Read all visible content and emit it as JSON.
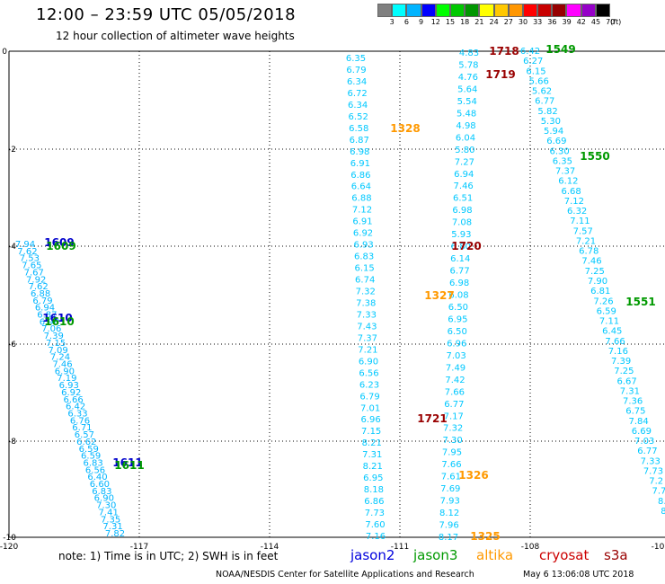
{
  "header": {
    "title": "12:00 – 23:59 UTC 05/05/2018",
    "subtitle": "12 hour collection of altimeter wave heights"
  },
  "legend": {
    "colors": [
      "#808080",
      "#00ffff",
      "#00b4ff",
      "#0000ff",
      "#00ff00",
      "#00c800",
      "#009600",
      "#ffff00",
      "#ffc800",
      "#ff9600",
      "#ff0000",
      "#c80000",
      "#960000",
      "#ff00ff",
      "#9600c8",
      "#000000"
    ],
    "labels": [
      "3",
      "6",
      "9",
      "12",
      "15",
      "18",
      "21",
      "24",
      "27",
      "30",
      "33",
      "36",
      "39",
      "42",
      "45",
      "70",
      "(ft)"
    ]
  },
  "axes": {
    "x_ticks": [
      "-120",
      "-117",
      "-114",
      "-111",
      "-108",
      "-10"
    ],
    "y_ticks": [
      "0",
      "-2",
      "-4",
      "-6",
      "-8",
      "-10"
    ]
  },
  "tracks": {
    "t1": {
      "label": "1609",
      "color": "#000000",
      "values": [
        "7.94",
        "7.62",
        "7.53",
        "7.65",
        "7.67",
        "7.92",
        "7.62",
        "6.88",
        "6.79",
        "6.94",
        "6.87",
        "6.98",
        "7.06",
        "7.39",
        "7.15",
        "7.09",
        "7.24",
        "7.46",
        "6.90",
        "7.19",
        "6.93",
        "6.92",
        "6.66",
        "6.42",
        "6.33",
        "6.76",
        "6.71",
        "6.57",
        "6.62",
        "6.59",
        "6.59",
        "6.83",
        "6.56",
        "6.40",
        "6.60",
        "6.83",
        "6.90",
        "7.30",
        "7.41",
        "7.35",
        "7.31",
        "7.82"
      ]
    },
    "t2": {
      "label": "1328",
      "color": "#00c8ff",
      "values": [
        "6.35",
        "6.79",
        "6.34",
        "6.72",
        "6.34",
        "6.52",
        "6.58",
        "6.87",
        "6.98",
        "6.91",
        "6.86",
        "6.64",
        "6.88",
        "7.12",
        "6.91",
        "6.92",
        "6.93",
        "6.83",
        "6.15",
        "6.74",
        "7.32",
        "7.38",
        "7.33",
        "7.43",
        "7.37",
        "7.21",
        "6.90",
        "6.56",
        "6.23",
        "6.79",
        "7.01",
        "6.96",
        "7.15",
        "8.21",
        "7.31",
        "8.21",
        "6.95",
        "8.18",
        "6.86",
        "7.73",
        "7.60",
        "7.16"
      ]
    },
    "t3": {
      "label": "1720",
      "color": "#00c8ff",
      "values": [
        "4.83",
        "5.78",
        "4.76",
        "5.64",
        "5.54",
        "5.48",
        "4.98",
        "6.04",
        "5.80",
        "7.27",
        "6.94",
        "7.46",
        "6.51",
        "6.98",
        "7.08",
        "5.93",
        "6.80",
        "6.14",
        "6.77",
        "6.98",
        "6.08",
        "6.50",
        "6.95",
        "6.50",
        "6.96",
        "7.03",
        "7.49",
        "7.42",
        "7.66",
        "6.77",
        "7.17",
        "7.32",
        "7.30",
        "7.95",
        "7.66",
        "7.61",
        "7.69",
        "7.93",
        "8.12",
        "7.96",
        "8.17"
      ]
    },
    "t4": {
      "label": "1550",
      "color": "#00c8ff",
      "values": [
        "6.42",
        "6.27",
        "6.15",
        "5.66",
        "5.62",
        "6.77",
        "5.82",
        "5.30",
        "5.94",
        "6.69",
        "6.30",
        "6.35",
        "7.37",
        "6.12",
        "6.68",
        "7.12",
        "6.32",
        "7.11",
        "7.57",
        "7.21",
        "6.78",
        "7.46",
        "7.25",
        "7.90",
        "6.81",
        "7.26",
        "6.59",
        "7.11",
        "6.45",
        "7.66",
        "7.16",
        "7.39",
        "7.25",
        "6.67",
        "7.31",
        "7.36",
        "6.75",
        "7.84",
        "6.69",
        "7.03",
        "6.77",
        "7.33",
        "7.73",
        "7.2",
        "7.7",
        "8.",
        "8."
      ]
    },
    "markers": [
      {
        "t": "1609",
        "c": "#0000cc"
      },
      {
        "t": "1609",
        "c": "#009900"
      },
      {
        "t": "1610",
        "c": "#0000cc"
      },
      {
        "t": "1610",
        "c": "#009900"
      },
      {
        "t": "1611",
        "c": "#0000cc"
      },
      {
        "t": "1611",
        "c": "#009900"
      },
      {
        "t": "1328",
        "c": "#ff9900"
      },
      {
        "t": "1327",
        "c": "#ff9900"
      },
      {
        "t": "1326",
        "c": "#ff9900"
      },
      {
        "t": "1325",
        "c": "#ff9900"
      },
      {
        "t": "1718",
        "c": "#990000"
      },
      {
        "t": "1719",
        "c": "#990000"
      },
      {
        "t": "1720",
        "c": "#990000"
      },
      {
        "t": "1721",
        "c": "#990000"
      },
      {
        "t": "1549",
        "c": "#009900"
      },
      {
        "t": "1550",
        "c": "#009900"
      },
      {
        "t": "1551",
        "c": "#009900"
      }
    ]
  },
  "bottom": {
    "note": "note:  1) Time is in UTC;  2) SWH is in feet",
    "satellites": {
      "jason2": "jason2",
      "jason3": "jason3",
      "altika": "altika",
      "cryosat": "cryosat",
      "s3a": "s3a"
    }
  },
  "footer": {
    "credit": "NOAA/NESDIS Center for Satellite Applications and Research",
    "timestamp": "May  6 13:06:08 UTC 2018"
  }
}
